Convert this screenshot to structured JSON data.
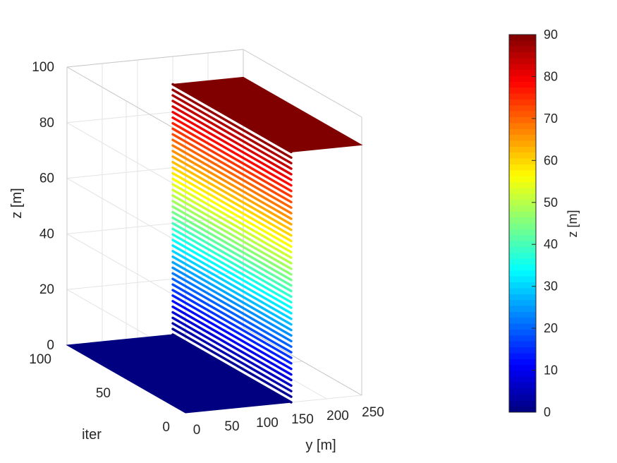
{
  "chart_data": {
    "type": "surface3d",
    "xlabel": "y [m]",
    "ylabel": "iter",
    "zlabel": "z [m]",
    "xlim": [
      0,
      250
    ],
    "ylim": [
      0,
      100
    ],
    "zlim": [
      0,
      100
    ],
    "x_ticks": [
      0,
      50,
      100,
      150,
      200,
      250
    ],
    "y_ticks": [
      0,
      50,
      100
    ],
    "z_ticks": [
      0,
      20,
      40,
      60,
      80,
      100
    ],
    "grid": true,
    "colormap": "jet",
    "surface": {
      "floor": {
        "z": 0,
        "x_range": [
          0,
          150
        ],
        "iter_range": [
          0,
          100
        ]
      },
      "wall": {
        "x": 150,
        "z_range": [
          0,
          90
        ],
        "iter_range": [
          0,
          100
        ],
        "line_count": 45
      },
      "top": {
        "z": 90,
        "x_range": [
          150,
          250
        ],
        "iter_range": [
          0,
          100
        ]
      }
    },
    "colorbar": {
      "label": "z [m]",
      "range": [
        0,
        90
      ],
      "ticks": [
        0,
        10,
        20,
        30,
        40,
        50,
        60,
        70,
        80,
        90
      ],
      "placement": "right"
    }
  }
}
